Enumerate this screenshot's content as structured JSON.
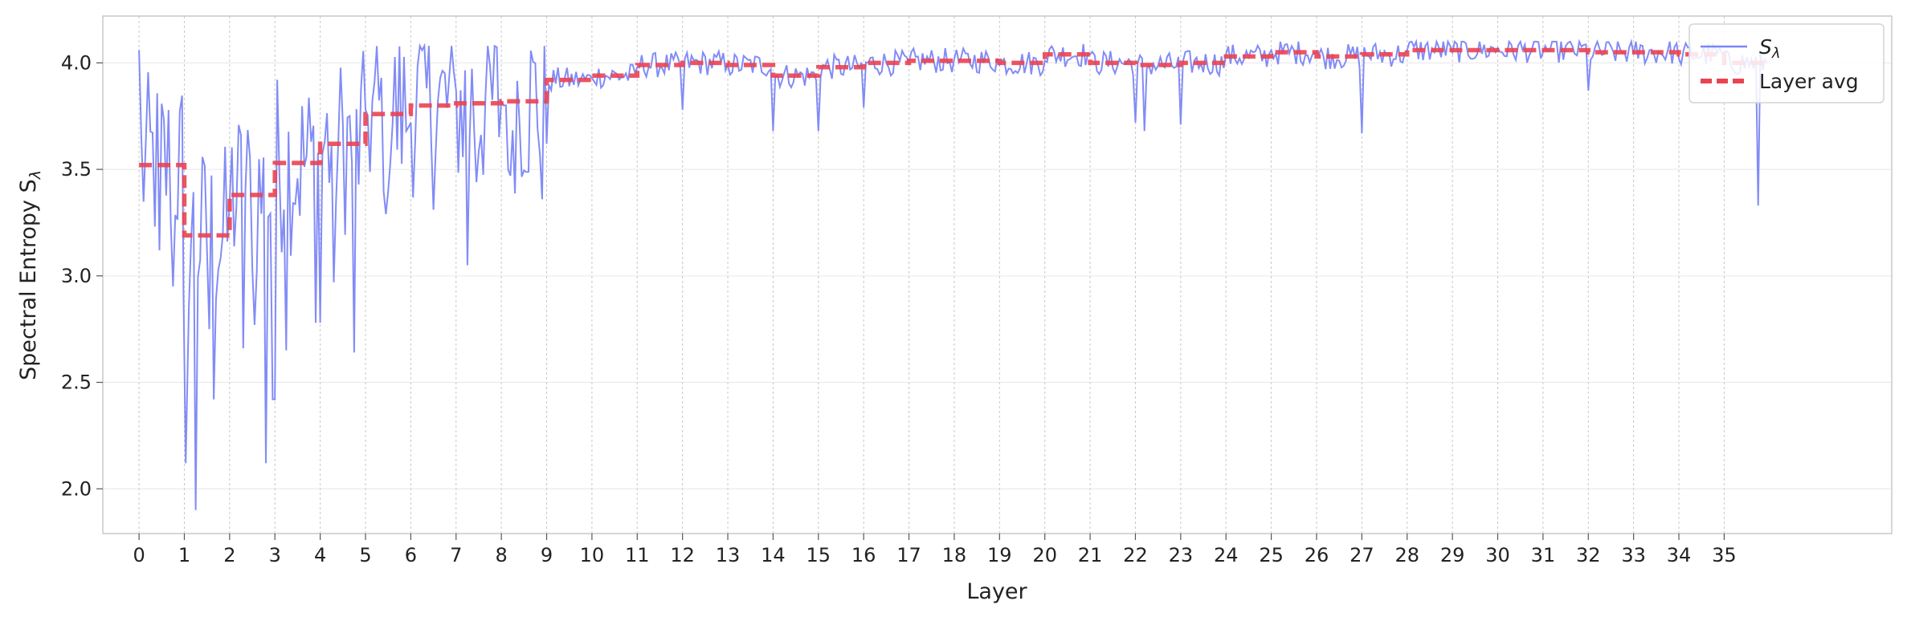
{
  "chart_data": {
    "type": "line",
    "xlabel": "Layer",
    "ylabel": "Spectral Entropy S",
    "ylabel_subscript": "λ",
    "x_tick_labels": [
      "0",
      "1",
      "2",
      "3",
      "4",
      "5",
      "6",
      "7",
      "8",
      "9",
      "10",
      "11",
      "12",
      "13",
      "14",
      "15",
      "16",
      "17",
      "18",
      "19",
      "20",
      "21",
      "22",
      "23",
      "24",
      "25",
      "26",
      "27",
      "28",
      "29",
      "30",
      "31",
      "32",
      "33",
      "34",
      "35"
    ],
    "y_ticks": [
      "2.0",
      "2.5",
      "3.0",
      "3.5",
      "4.0"
    ],
    "y_tick_values": [
      2.0,
      2.5,
      3.0,
      3.5,
      4.0
    ],
    "xlim": [
      -0.8,
      38.7
    ],
    "ylim": [
      1.79,
      4.22
    ],
    "grid": true,
    "layer_boundaries": true,
    "legend_position": "top-right",
    "colors": {
      "series": "#7b86f5",
      "average": "#ea4352",
      "grid": "#e6e6e6",
      "boundary": "#c8c8c8",
      "spine": "#c8c8c8"
    },
    "series": [
      {
        "name": "S",
        "name_subscript": "λ",
        "style": "thin-line",
        "points_per_layer": 20,
        "layer_start_values": [
          4.06,
          3.01,
          3.35,
          2.42,
          2.78,
          3.78,
          3.72,
          3.87,
          3.82,
          3.62,
          3.93,
          3.98,
          4.0,
          3.99,
          3.95,
          3.87,
          3.98,
          4.0,
          4.02,
          3.99,
          4.01,
          4.04,
          3.97,
          4.0,
          4.04,
          4.06,
          4.05,
          4.04,
          4.06,
          4.05,
          4.07,
          4.05,
          4.06,
          4.04,
          4.02,
          4.05
        ],
        "outliers": [
          {
            "x": 0.45,
            "y": 3.12
          },
          {
            "x": 0.75,
            "y": 2.95
          },
          {
            "x": 0.98,
            "y": 2.93
          },
          {
            "x": 1.03,
            "y": 2.12
          },
          {
            "x": 1.25,
            "y": 1.9
          },
          {
            "x": 1.55,
            "y": 2.75
          },
          {
            "x": 1.65,
            "y": 2.42
          },
          {
            "x": 2.3,
            "y": 2.66
          },
          {
            "x": 2.55,
            "y": 2.77
          },
          {
            "x": 2.8,
            "y": 2.12
          },
          {
            "x": 2.95,
            "y": 2.42
          },
          {
            "x": 3.25,
            "y": 2.65
          },
          {
            "x": 3.9,
            "y": 2.78
          },
          {
            "x": 4.3,
            "y": 2.97
          },
          {
            "x": 4.75,
            "y": 2.64
          },
          {
            "x": 5.45,
            "y": 3.29
          },
          {
            "x": 6.5,
            "y": 3.31
          },
          {
            "x": 7.25,
            "y": 3.05
          },
          {
            "x": 7.45,
            "y": 3.44
          },
          {
            "x": 8.2,
            "y": 3.47
          },
          {
            "x": 8.9,
            "y": 3.36
          },
          {
            "x": 12.0,
            "y": 3.78
          },
          {
            "x": 14.0,
            "y": 3.68
          },
          {
            "x": 15.0,
            "y": 3.68
          },
          {
            "x": 16.0,
            "y": 3.79
          },
          {
            "x": 22.0,
            "y": 3.72
          },
          {
            "x": 22.2,
            "y": 3.68
          },
          {
            "x": 23.0,
            "y": 3.71
          },
          {
            "x": 27.0,
            "y": 3.67
          },
          {
            "x": 32.0,
            "y": 3.87
          },
          {
            "x": 35.75,
            "y": 3.33
          }
        ]
      },
      {
        "name": "Layer avg",
        "style": "dashed",
        "layer_averages": [
          3.52,
          3.19,
          3.38,
          3.53,
          3.62,
          3.76,
          3.8,
          3.81,
          3.82,
          3.92,
          3.94,
          3.99,
          4.0,
          3.99,
          3.94,
          3.98,
          4.0,
          4.01,
          4.01,
          4.0,
          4.04,
          4.0,
          3.99,
          4.0,
          4.03,
          4.05,
          4.03,
          4.04,
          4.06,
          4.06,
          4.06,
          4.06,
          4.05,
          4.05,
          4.04,
          4.0
        ]
      }
    ],
    "legend": [
      {
        "label": "S",
        "subscript": "λ",
        "style": "line"
      },
      {
        "label": "Layer avg",
        "style": "dashed"
      }
    ]
  }
}
